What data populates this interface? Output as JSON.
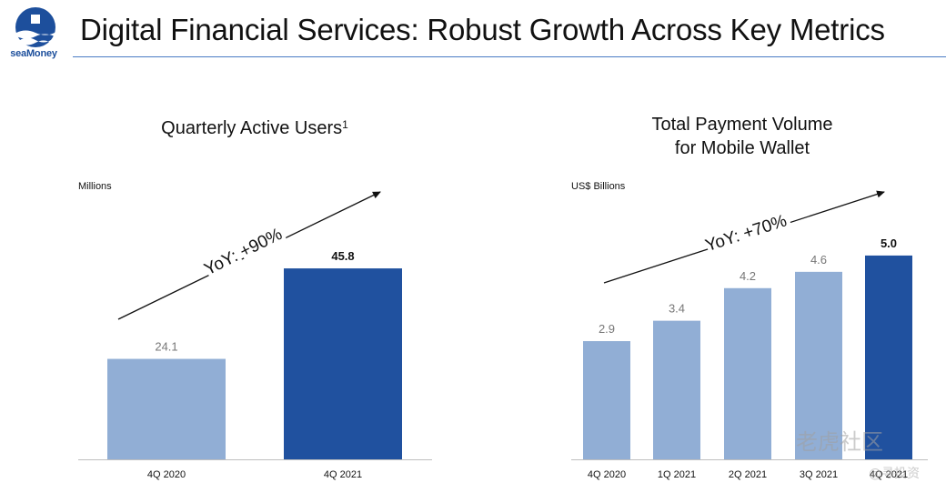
{
  "header": {
    "logo_text": "seaMoney",
    "title": "Digital Financial Services: Robust Growth Across Key Metrics"
  },
  "watermark": {
    "text": "老虎社区",
    "subtext": "@寻投资"
  },
  "colors": {
    "light_bar": "#91aed5",
    "dark_bar": "#20519f",
    "brand": "#1d4f9c"
  },
  "chart_data": [
    {
      "type": "bar",
      "title": "Quarterly Active Users",
      "title_footnote": "1",
      "ylabel": "Millions",
      "categories": [
        "4Q 2020",
        "4Q 2021"
      ],
      "values": [
        24.1,
        45.8
      ],
      "value_labels": [
        "24.1",
        "45.8"
      ],
      "highlight_index": 1,
      "ylim": [
        0,
        48
      ],
      "annotation": "YoY: +90%"
    },
    {
      "type": "bar",
      "title": "Total Payment Volume for Mobile Wallet",
      "title_lines": [
        "Total Payment Volume",
        "for Mobile Wallet"
      ],
      "ylabel": "US$ Billions",
      "categories": [
        "4Q 2020",
        "1Q 2021",
        "2Q 2021",
        "3Q 2021",
        "4Q 2021"
      ],
      "values": [
        2.9,
        3.4,
        4.2,
        4.6,
        5.0
      ],
      "value_labels": [
        "2.9",
        "3.4",
        "4.2",
        "4.6",
        "5.0"
      ],
      "highlight_index": 4,
      "ylim": [
        0,
        5.4
      ],
      "annotation": "YoY: +70%"
    }
  ]
}
